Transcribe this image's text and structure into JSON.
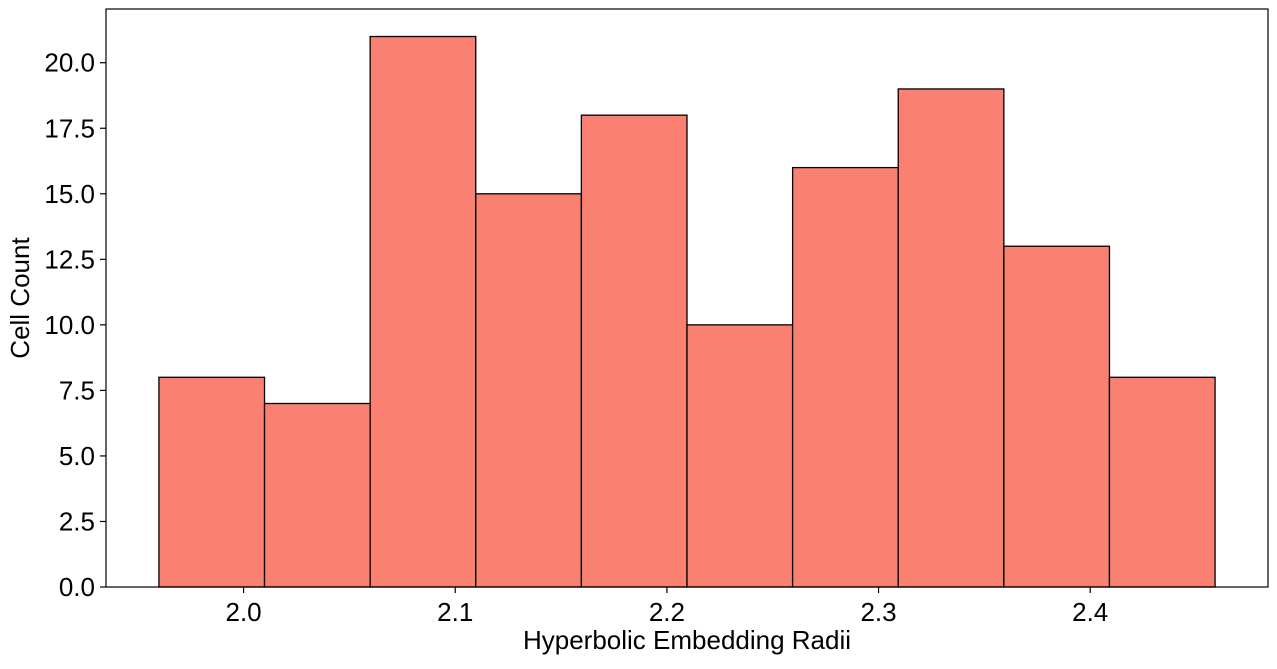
{
  "chart_data": {
    "type": "bar",
    "title": "",
    "xlabel": "Hyperbolic Embedding Radii",
    "ylabel": "Cell Count",
    "bin_edges": [
      1.96,
      2.0099,
      2.0598,
      2.1097,
      2.1596,
      2.2095,
      2.2594,
      2.3093,
      2.3592,
      2.4091,
      2.459
    ],
    "values": [
      8,
      7,
      21,
      15,
      18,
      10,
      16,
      19,
      13,
      8
    ],
    "xlim": [
      1.935,
      2.484
    ],
    "ylim": [
      0,
      22.05
    ],
    "xticks": [
      2.0,
      2.1,
      2.2,
      2.3,
      2.4
    ],
    "xtick_labels": [
      "2.0",
      "2.1",
      "2.2",
      "2.3",
      "2.4"
    ],
    "yticks": [
      0,
      2.5,
      5,
      7.5,
      10,
      12.5,
      15,
      17.5,
      20
    ],
    "ytick_labels": [
      "0.0",
      "2.5",
      "5.0",
      "7.5",
      "10.0",
      "12.5",
      "15.0",
      "17.5",
      "20.0"
    ],
    "grid": false,
    "legend": "none",
    "bar_color": "#FA8072",
    "edge_color": "#000000"
  }
}
